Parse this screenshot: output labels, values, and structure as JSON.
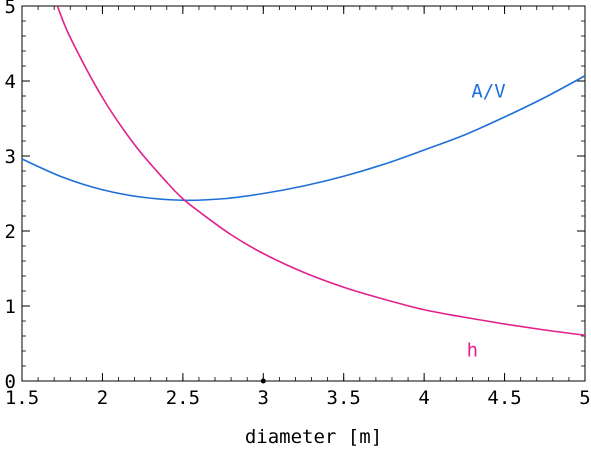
{
  "chart_data": {
    "type": "line",
    "title": "",
    "xlabel": "diameter [m]",
    "ylabel": "",
    "xlim": [
      1.5,
      5
    ],
    "ylim": [
      0,
      5
    ],
    "grid": false,
    "legend": "none",
    "x_ticks": [
      {
        "value": 1.5,
        "label": "1.5"
      },
      {
        "value": 2,
        "label": "2"
      },
      {
        "value": 2.5,
        "label": "2.5"
      },
      {
        "value": 3,
        "label": "3"
      },
      {
        "value": 3.5,
        "label": "3.5"
      },
      {
        "value": 4,
        "label": "4"
      },
      {
        "value": 4.5,
        "label": "4.5"
      },
      {
        "value": 5,
        "label": "5"
      }
    ],
    "y_ticks": [
      {
        "value": 0,
        "label": "0"
      },
      {
        "value": 1,
        "label": "1"
      },
      {
        "value": 2,
        "label": "2"
      },
      {
        "value": 3,
        "label": "3"
      },
      {
        "value": 4,
        "label": "4"
      },
      {
        "value": 5,
        "label": "5"
      }
    ],
    "series": [
      {
        "name": "A/V",
        "color": "#1e6fd9",
        "x": [
          1.5,
          1.75,
          2.0,
          2.25,
          2.5,
          2.75,
          3.0,
          3.25,
          3.5,
          3.75,
          4.0,
          4.25,
          4.5,
          4.75,
          5.0
        ],
        "y": [
          2.96,
          2.72,
          2.55,
          2.45,
          2.41,
          2.43,
          2.5,
          2.6,
          2.73,
          2.89,
          3.08,
          3.28,
          3.52,
          3.78,
          4.07
        ]
      },
      {
        "name": "h",
        "color": "#e0208c",
        "x": [
          1.72,
          1.8,
          2.0,
          2.2,
          2.4,
          2.5,
          2.6,
          2.8,
          3.0,
          3.25,
          3.5,
          3.75,
          4.0,
          4.25,
          4.5,
          4.75,
          5.0
        ],
        "y": [
          5.0,
          4.58,
          3.78,
          3.15,
          2.65,
          2.43,
          2.26,
          1.95,
          1.7,
          1.45,
          1.25,
          1.09,
          0.95,
          0.85,
          0.76,
          0.68,
          0.61
        ]
      }
    ],
    "markers": [
      {
        "x": 3,
        "y": 0
      }
    ]
  }
}
